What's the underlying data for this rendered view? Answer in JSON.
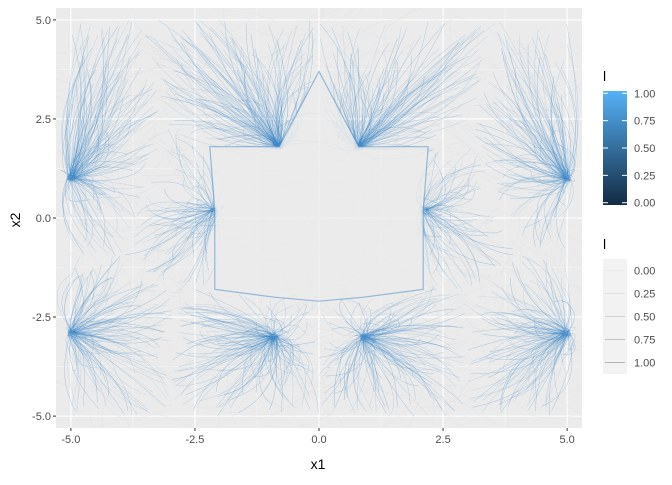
{
  "chart_data": {
    "type": "line",
    "description_free": true,
    "xlabel": "x1",
    "ylabel": "x2",
    "xlim": [
      -5.3,
      5.3
    ],
    "ylim": [
      -5.3,
      5.3
    ],
    "x_ticks": [
      -5.0,
      -2.5,
      0.0,
      2.5,
      5.0
    ],
    "y_ticks": [
      -5.0,
      -2.5,
      0.0,
      2.5,
      5.0
    ],
    "x_tick_labels": [
      "-5.0",
      "-2.5",
      "0.0",
      "2.5",
      "5.0"
    ],
    "y_tick_labels": [
      "-5.0",
      "-2.5",
      "0.0",
      "2.5",
      "5.0"
    ],
    "grid": true,
    "background": "#ebebeb",
    "region_outline": [
      [
        -2.2,
        1.8
      ],
      [
        -0.8,
        1.8
      ],
      [
        0,
        3.7
      ],
      [
        0.8,
        1.8
      ],
      [
        2.2,
        1.8
      ],
      [
        2.1,
        0.2
      ],
      [
        2.1,
        -1.8
      ],
      [
        0.9,
        -2.0
      ],
      [
        0,
        -2.1
      ],
      [
        -0.9,
        -2.0
      ],
      [
        -2.1,
        -1.8
      ],
      [
        -2.1,
        0.2
      ]
    ],
    "attractors": [
      [
        -5.0,
        1.0
      ],
      [
        5.0,
        1.0
      ],
      [
        -5.0,
        -2.9
      ],
      [
        5.0,
        -2.9
      ],
      [
        -2.1,
        0.2
      ],
      [
        2.1,
        0.2
      ],
      [
        -0.8,
        1.8
      ],
      [
        0.8,
        1.8
      ],
      [
        -0.9,
        -3.0
      ],
      [
        0.9,
        -3.0
      ]
    ],
    "legend_color": {
      "title": "l",
      "position": "right",
      "ticks": [
        1.0,
        0.75,
        0.5,
        0.25,
        0.0
      ],
      "tick_labels": [
        "1.00",
        "0.75",
        "0.50",
        "0.25",
        "0.00"
      ],
      "color_high": "#56b1f7",
      "color_low": "#132b43"
    },
    "legend_alpha": {
      "title": "l",
      "position": "right",
      "entries": [
        "0.00",
        "0.25",
        "0.50",
        "0.75",
        "1.00"
      ]
    },
    "line_color_light": "#d6d6d6",
    "line_color_blue": "#3c86c6"
  }
}
